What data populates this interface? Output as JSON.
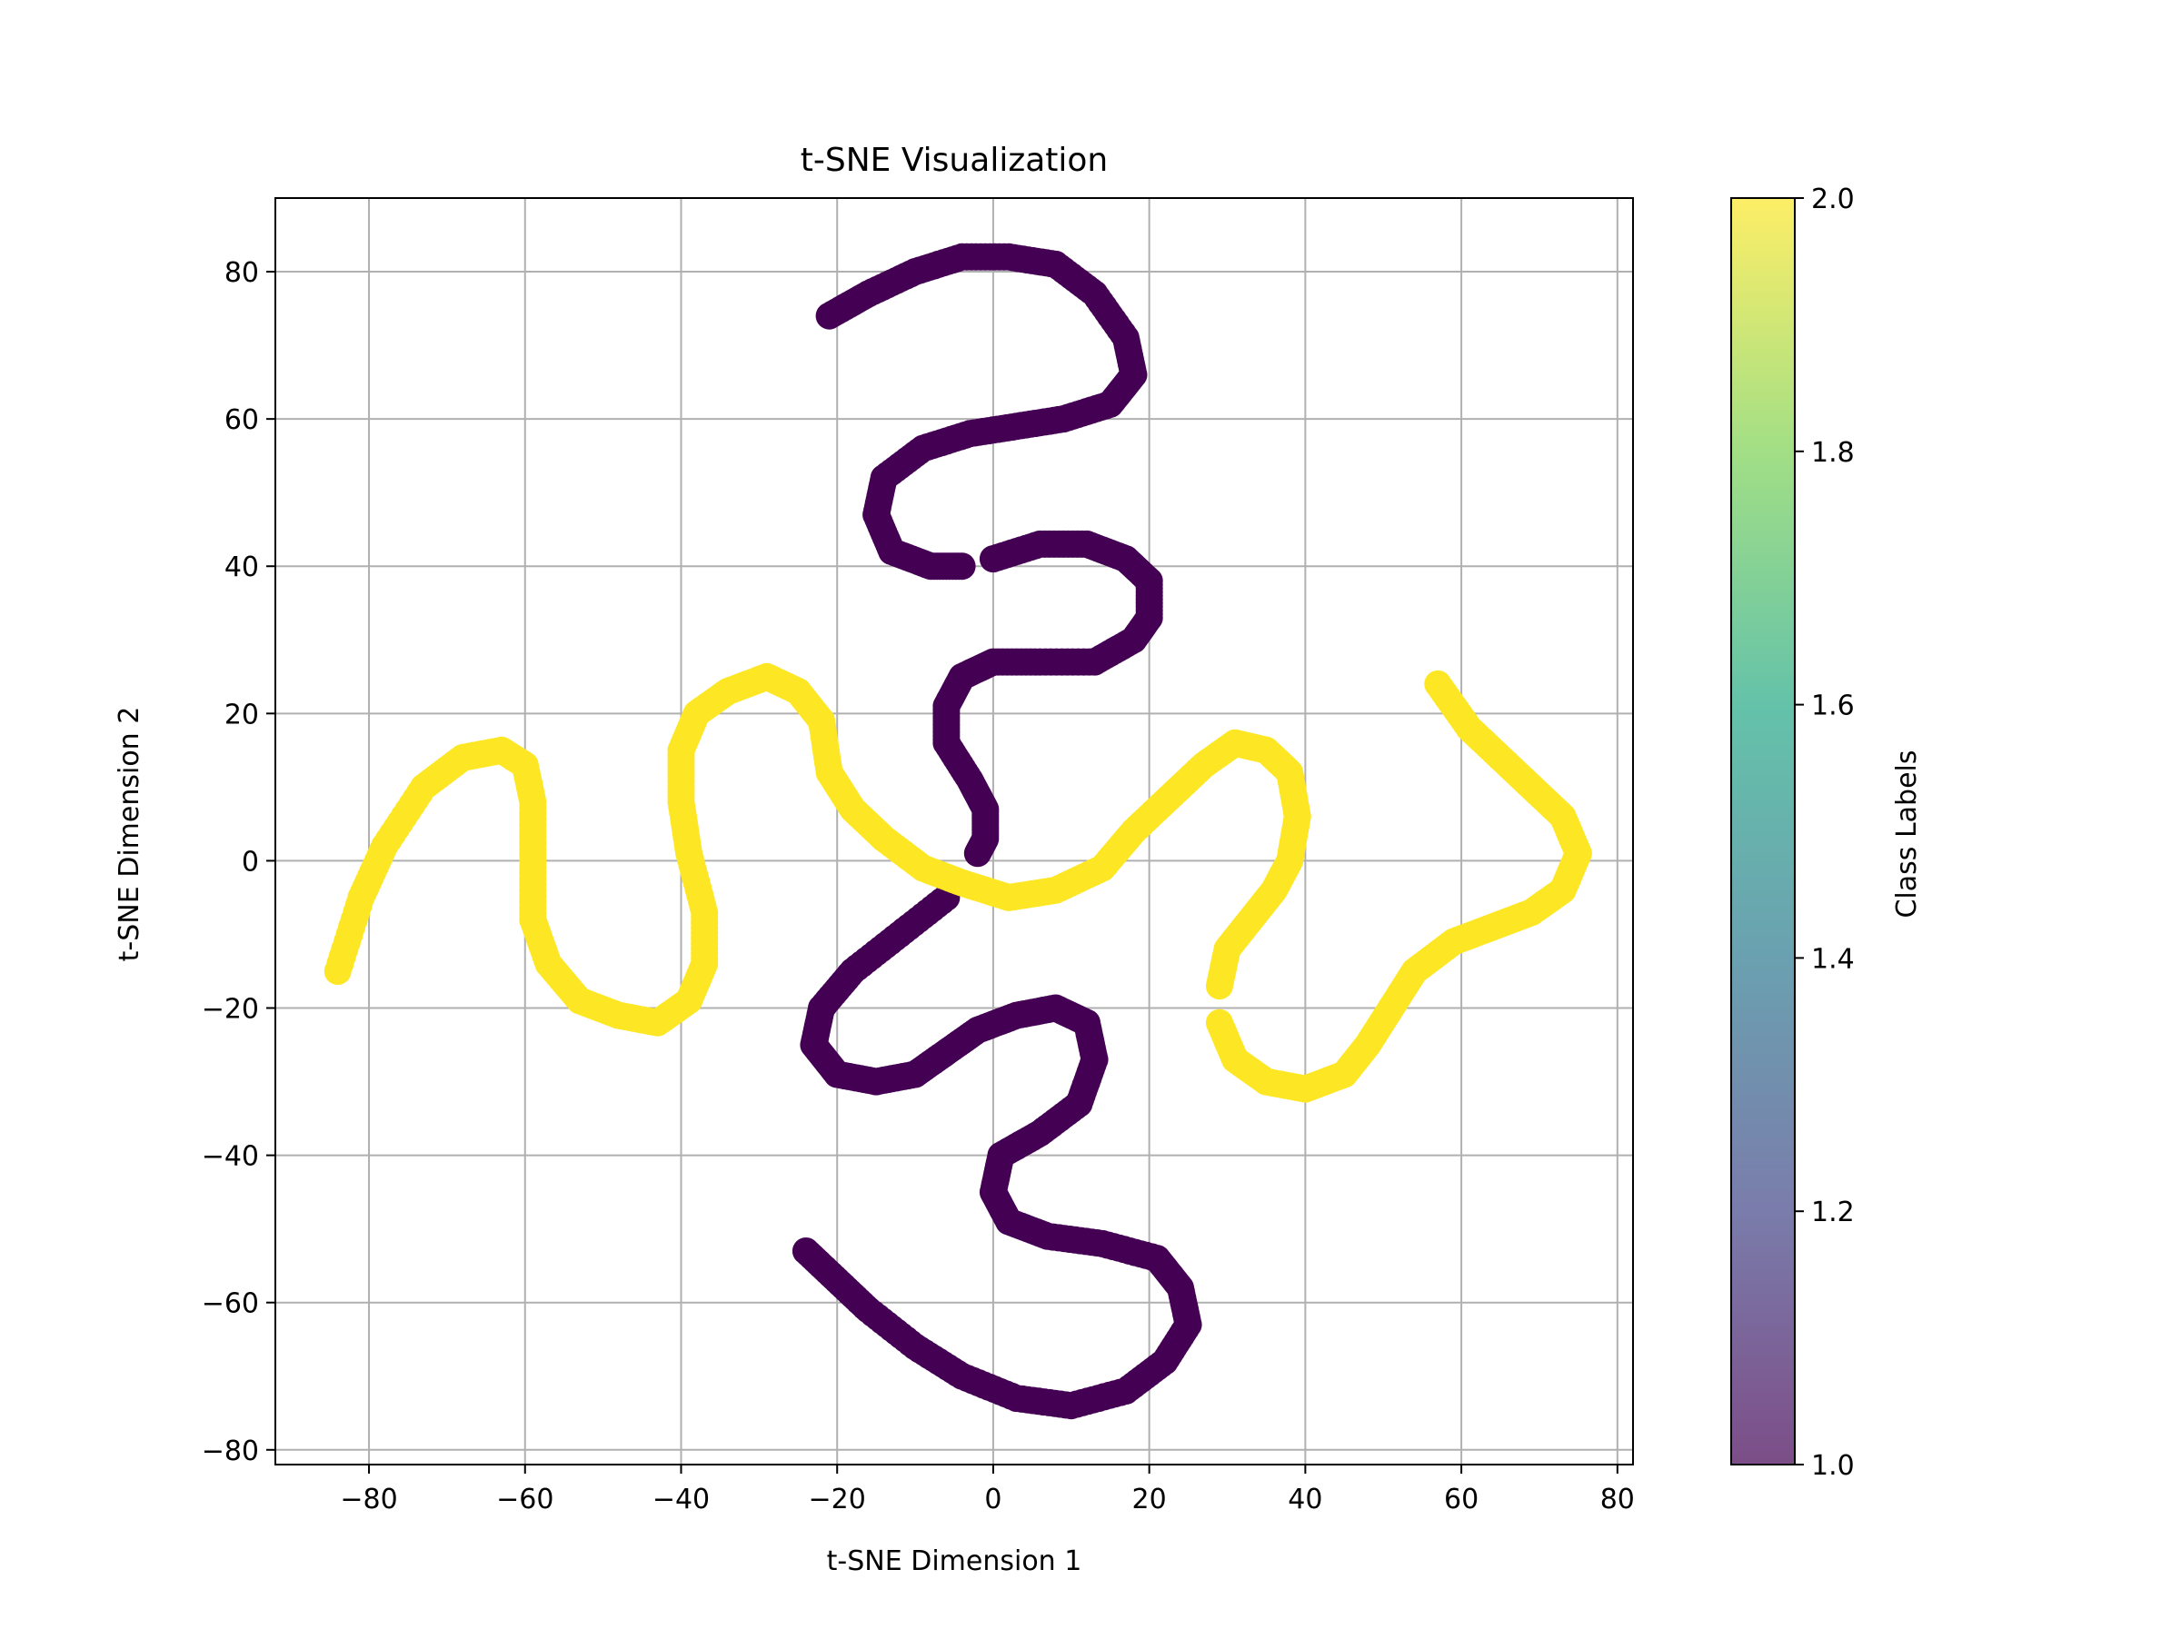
{
  "chart_data": {
    "type": "scatter",
    "title": "t-SNE Visualization",
    "xlabel": "t-SNE Dimension 1",
    "ylabel": "t-SNE Dimension 2",
    "xlim": [
      -92,
      82
    ],
    "ylim": [
      -82,
      90
    ],
    "xticks": [
      -80,
      -60,
      -40,
      -20,
      0,
      20,
      40,
      60,
      80
    ],
    "yticks": [
      -80,
      -60,
      -40,
      -20,
      0,
      20,
      40,
      60,
      80
    ],
    "xtick_labels": [
      "−80",
      "−60",
      "−40",
      "−20",
      "0",
      "20",
      "40",
      "60",
      "80"
    ],
    "ytick_labels": [
      "−80",
      "−60",
      "−40",
      "−20",
      "0",
      "20",
      "40",
      "60",
      "80"
    ],
    "grid": true,
    "colorbar": {
      "label": "Class Labels",
      "range": [
        1.0,
        2.0
      ],
      "ticks": [
        1.0,
        1.2,
        1.4,
        1.6,
        1.8,
        2.0
      ],
      "tick_labels": [
        "1.0",
        "1.2",
        "1.4",
        "1.6",
        "1.8",
        "2.0"
      ],
      "colormap": "viridis",
      "alpha": 0.7,
      "stops": [
        "#440154",
        "#414487",
        "#2a788e",
        "#22a884",
        "#7ad151",
        "#fde725"
      ]
    },
    "series": [
      {
        "class": 1,
        "color": "#440154",
        "segments": [
          [
            [
              -21,
              74
            ],
            [
              -16,
              77
            ],
            [
              -10,
              80
            ],
            [
              -4,
              82
            ],
            [
              2,
              82
            ],
            [
              8,
              81
            ],
            [
              13,
              77
            ],
            [
              17,
              71
            ],
            [
              18,
              66
            ],
            [
              15,
              62
            ],
            [
              9,
              60
            ],
            [
              3,
              59
            ],
            [
              -3,
              58
            ],
            [
              -9,
              56
            ],
            [
              -14,
              52
            ],
            [
              -15,
              47
            ],
            [
              -13,
              42
            ],
            [
              -8,
              40
            ],
            [
              -4,
              40
            ]
          ],
          [
            [
              0,
              41
            ],
            [
              6,
              43
            ],
            [
              12,
              43
            ],
            [
              17,
              41
            ],
            [
              20,
              38
            ],
            [
              20,
              33
            ],
            [
              18,
              30
            ],
            [
              13,
              27
            ],
            [
              6,
              27
            ],
            [
              0,
              27
            ],
            [
              -4,
              25
            ],
            [
              -6,
              21
            ],
            [
              -6,
              16
            ],
            [
              -3,
              11
            ],
            [
              -1,
              7
            ],
            [
              -1,
              3
            ],
            [
              -2,
              1
            ]
          ],
          [
            [
              -6,
              -5
            ],
            [
              -12,
              -10
            ],
            [
              -18,
              -15
            ],
            [
              -22,
              -20
            ],
            [
              -23,
              -25
            ],
            [
              -20,
              -29
            ],
            [
              -15,
              -30
            ],
            [
              -10,
              -29
            ],
            [
              -6,
              -26
            ],
            [
              -2,
              -23
            ],
            [
              3,
              -21
            ],
            [
              8,
              -20
            ],
            [
              12,
              -22
            ],
            [
              13,
              -27
            ],
            [
              11,
              -33
            ],
            [
              6,
              -37
            ],
            [
              1,
              -40
            ],
            [
              0,
              -45
            ],
            [
              2,
              -49
            ],
            [
              7,
              -51
            ],
            [
              14,
              -52
            ],
            [
              21,
              -54
            ],
            [
              24,
              -58
            ],
            [
              25,
              -63
            ],
            [
              22,
              -68
            ],
            [
              17,
              -72
            ],
            [
              10,
              -74
            ],
            [
              3,
              -73
            ],
            [
              -4,
              -70
            ],
            [
              -10,
              -66
            ],
            [
              -16,
              -61
            ],
            [
              -20,
              -57
            ],
            [
              -24,
              -53
            ]
          ]
        ]
      },
      {
        "class": 2,
        "color": "#fde725",
        "segments": [
          [
            [
              -84,
              -15
            ],
            [
              -81,
              -5
            ],
            [
              -78,
              2
            ],
            [
              -73,
              10
            ],
            [
              -68,
              14
            ],
            [
              -63,
              15
            ],
            [
              -60,
              13
            ],
            [
              -59,
              8
            ],
            [
              -59,
              0
            ],
            [
              -59,
              -8
            ],
            [
              -57,
              -14
            ],
            [
              -53,
              -19
            ],
            [
              -48,
              -21
            ],
            [
              -43,
              -22
            ],
            [
              -39,
              -19
            ],
            [
              -37,
              -14
            ],
            [
              -37,
              -7
            ],
            [
              -39,
              1
            ],
            [
              -40,
              8
            ],
            [
              -40,
              15
            ],
            [
              -38,
              20
            ],
            [
              -34,
              23
            ],
            [
              -29,
              25
            ],
            [
              -25,
              23
            ],
            [
              -22,
              19
            ],
            [
              -21,
              12
            ],
            [
              -18,
              7
            ],
            [
              -14,
              3
            ],
            [
              -9,
              -1
            ],
            [
              -4,
              -3
            ],
            [
              2,
              -5
            ],
            [
              8,
              -4
            ],
            [
              14,
              -1
            ],
            [
              18,
              4
            ],
            [
              23,
              9
            ],
            [
              27,
              13
            ],
            [
              31,
              16
            ],
            [
              35,
              15
            ],
            [
              38,
              12
            ],
            [
              39,
              6
            ],
            [
              38,
              0
            ],
            [
              36,
              -4
            ],
            [
              33,
              -8
            ],
            [
              30,
              -12
            ],
            [
              29,
              -17
            ]
          ],
          [
            [
              29,
              -22
            ],
            [
              31,
              -27
            ],
            [
              35,
              -30
            ],
            [
              40,
              -31
            ],
            [
              45,
              -29
            ],
            [
              48,
              -25
            ],
            [
              51,
              -20
            ],
            [
              54,
              -15
            ],
            [
              59,
              -11
            ],
            [
              64,
              -9
            ],
            [
              69,
              -7
            ],
            [
              73,
              -4
            ],
            [
              75,
              1
            ],
            [
              73,
              6
            ],
            [
              69,
              10
            ],
            [
              65,
              14
            ],
            [
              61,
              18
            ],
            [
              57,
              24
            ]
          ]
        ]
      }
    ]
  }
}
